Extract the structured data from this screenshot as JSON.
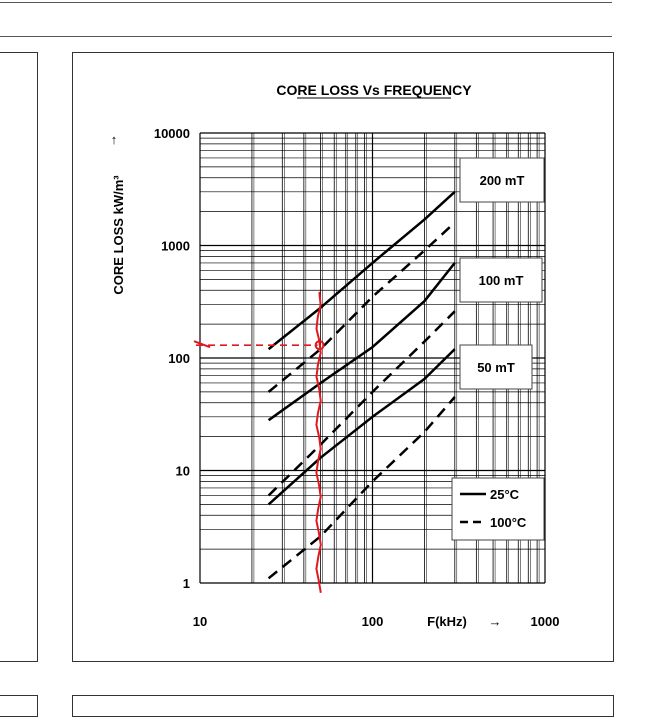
{
  "chart_data": {
    "type": "line",
    "title": "CORE LOSS Vs FREQUENCY",
    "xlabel": "F(kHz)",
    "ylabel": "CORE LOSS kW/m³",
    "x_scale": "log",
    "y_scale": "log",
    "xlim": [
      10,
      1000
    ],
    "ylim": [
      1,
      10000
    ],
    "x_ticks": [
      "10",
      "100",
      "1000"
    ],
    "y_ticks": [
      "1",
      "10",
      "100",
      "1000",
      "10000"
    ],
    "grid": true,
    "legend": {
      "position": "bottom-right",
      "entries": [
        {
          "label": "25°C",
          "style": "solid"
        },
        {
          "label": "100°C",
          "style": "dashed"
        }
      ]
    },
    "annotations": [
      "200 mT",
      "100 mT",
      "50 mT"
    ],
    "series": [
      {
        "flux": "200 mT",
        "temperature": "25°C",
        "style": "solid",
        "x": [
          25,
          50,
          100,
          200,
          300
        ],
        "y": [
          120,
          280,
          700,
          1700,
          3000
        ]
      },
      {
        "flux": "200 mT",
        "temperature": "100°C",
        "style": "dashed",
        "x": [
          25,
          50,
          100,
          200,
          300
        ],
        "y": [
          50,
          120,
          350,
          900,
          1600
        ]
      },
      {
        "flux": "100 mT",
        "temperature": "25°C",
        "style": "solid",
        "x": [
          25,
          50,
          100,
          200,
          300
        ],
        "y": [
          28,
          60,
          125,
          320,
          700
        ]
      },
      {
        "flux": "100 mT",
        "temperature": "100°C",
        "style": "dashed",
        "x": [
          25,
          50,
          100,
          200,
          300
        ],
        "y": [
          6,
          17,
          50,
          140,
          260
        ]
      },
      {
        "flux": "50 mT",
        "temperature": "25°C",
        "style": "solid",
        "x": [
          25,
          50,
          100,
          200,
          300
        ],
        "y": [
          5,
          13,
          30,
          65,
          120
        ]
      },
      {
        "flux": "50 mT",
        "temperature": "100°C",
        "style": "dashed",
        "x": [
          25,
          50,
          100,
          200,
          300
        ],
        "y": [
          1.1,
          2.6,
          8,
          22,
          45
        ]
      }
    ],
    "markup": {
      "color": "#e0191e",
      "frequency_line_x": 50,
      "frequency_line_ylim": [
        0.6,
        380
      ],
      "point": {
        "x": 50,
        "y": 130
      },
      "dashed_level_y": 130
    }
  }
}
